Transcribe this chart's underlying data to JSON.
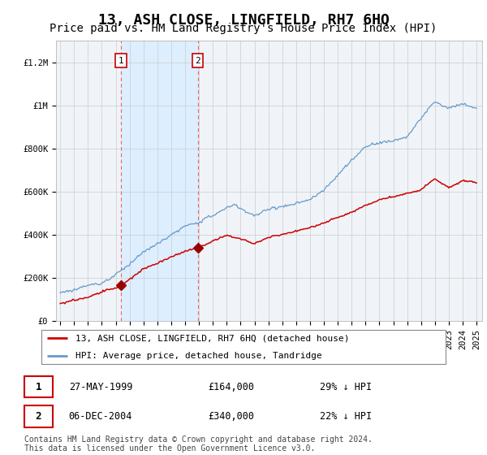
{
  "title": "13, ASH CLOSE, LINGFIELD, RH7 6HQ",
  "subtitle": "Price paid vs. HM Land Registry's House Price Index (HPI)",
  "ylim": [
    0,
    1300000
  ],
  "yticks": [
    0,
    200000,
    400000,
    600000,
    800000,
    1000000,
    1200000
  ],
  "ytick_labels": [
    "£0",
    "£200K",
    "£400K",
    "£600K",
    "£800K",
    "£1M",
    "£1.2M"
  ],
  "purchase1_year": 1999.38,
  "purchase1_price": 164000,
  "purchase1_date": "27-MAY-1999",
  "purchase1_display": "£164,000",
  "purchase1_hpi": "29% ↓ HPI",
  "purchase2_year": 2004.92,
  "purchase2_price": 340000,
  "purchase2_date": "06-DEC-2004",
  "purchase2_display": "£340,000",
  "purchase2_hpi": "22% ↓ HPI",
  "shade_color": "#ddeeff",
  "vline_color": "#ee6666",
  "red_line_color": "#cc0000",
  "blue_line_color": "#6699cc",
  "marker_color": "#990000",
  "legend_line1": "13, ASH CLOSE, LINGFIELD, RH7 6HQ (detached house)",
  "legend_line2": "HPI: Average price, detached house, Tandridge",
  "footer": "Contains HM Land Registry data © Crown copyright and database right 2024.\nThis data is licensed under the Open Government Licence v3.0.",
  "background_color": "#f0f4f8",
  "grid_color": "#cccccc",
  "title_fontsize": 13,
  "subtitle_fontsize": 10,
  "tick_fontsize": 7.5,
  "legend_fontsize": 8,
  "footer_fontsize": 7
}
